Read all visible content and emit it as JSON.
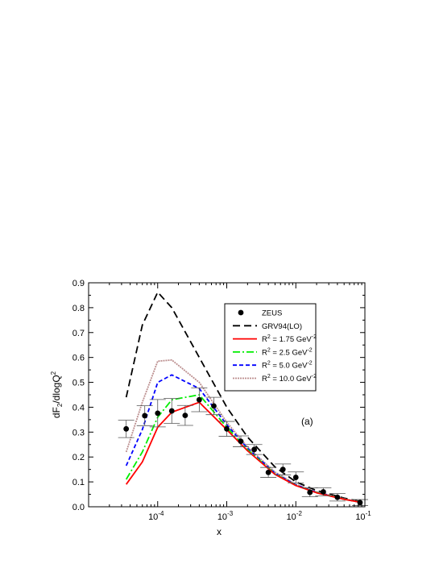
{
  "chart_data": {
    "type": "line",
    "xlabel": "x",
    "ylabel_main": "dF",
    "ylabel_sub": "2",
    "ylabel_mid": "/dlogQ",
    "ylabel_sup": "2",
    "x_scale": "log",
    "xlim": [
      1e-05,
      0.1
    ],
    "ylim": [
      0,
      0.9
    ],
    "x_ticks": [
      {
        "base": "10",
        "exp": "-4",
        "value": 0.0001
      },
      {
        "base": "10",
        "exp": "-3",
        "value": 0.001
      },
      {
        "base": "10",
        "exp": "-2",
        "value": 0.01
      },
      {
        "base": "10",
        "exp": "-1",
        "value": 0.1
      }
    ],
    "y_ticks": [
      "0.0",
      "0.1",
      "0.2",
      "0.3",
      "0.4",
      "0.5",
      "0.6",
      "0.7",
      "0.8",
      "0.9"
    ],
    "annotation": "(a)",
    "legend_placement": "top-right",
    "data_points": {
      "name": "ZEUS",
      "points": [
        {
          "x": 3.5e-05,
          "y": 0.313,
          "err": 0.035
        },
        {
          "x": 6.5e-05,
          "y": 0.366,
          "err": 0.04
        },
        {
          "x": 0.0001,
          "y": 0.376,
          "err": 0.055
        },
        {
          "x": 0.00016,
          "y": 0.385,
          "err": 0.05
        },
        {
          "x": 0.00025,
          "y": 0.367,
          "err": 0.04
        },
        {
          "x": 0.0004,
          "y": 0.43,
          "err": 0.048
        },
        {
          "x": 0.00065,
          "y": 0.405,
          "err": 0.035
        },
        {
          "x": 0.001,
          "y": 0.313,
          "err": 0.03
        },
        {
          "x": 0.0016,
          "y": 0.263,
          "err": 0.022
        },
        {
          "x": 0.0025,
          "y": 0.23,
          "err": 0.02
        },
        {
          "x": 0.004,
          "y": 0.138,
          "err": 0.02
        },
        {
          "x": 0.0065,
          "y": 0.15,
          "err": 0.022
        },
        {
          "x": 0.01,
          "y": 0.118,
          "err": 0.022
        },
        {
          "x": 0.016,
          "y": 0.058,
          "err": 0.018
        },
        {
          "x": 0.025,
          "y": 0.06,
          "err": 0.016
        },
        {
          "x": 0.04,
          "y": 0.038,
          "err": 0.015
        },
        {
          "x": 0.085,
          "y": 0.017,
          "err": 0.012
        }
      ]
    },
    "series": [
      {
        "name": "GRV94(LO)",
        "color": "#000000",
        "dash": "9,5",
        "width": 1.8,
        "x": [
          3.5e-05,
          6e-05,
          0.0001,
          0.00016,
          0.0004,
          0.001,
          0.002,
          0.005,
          0.01,
          0.02,
          0.05,
          0.09
        ],
        "y": [
          0.44,
          0.73,
          0.862,
          0.8,
          0.6,
          0.4,
          0.28,
          0.16,
          0.1,
          0.065,
          0.035,
          0.02
        ]
      },
      {
        "name": "10.0",
        "color": "#bc8f8f",
        "dash": "2,1",
        "width": 1.8,
        "x": [
          3.5e-05,
          6e-05,
          0.0001,
          0.00016,
          0.0004,
          0.001,
          0.002,
          0.005,
          0.01,
          0.02,
          0.05,
          0.09
        ],
        "y": [
          0.22,
          0.42,
          0.585,
          0.59,
          0.5,
          0.34,
          0.24,
          0.14,
          0.09,
          0.06,
          0.032,
          0.018
        ]
      },
      {
        "name": "5.0",
        "color": "#0000ff",
        "dash": "5,3",
        "width": 1.8,
        "x": [
          3.5e-05,
          6e-05,
          0.0001,
          0.00016,
          0.0004,
          0.001,
          0.002,
          0.005,
          0.01,
          0.02,
          0.05,
          0.09
        ],
        "y": [
          0.165,
          0.31,
          0.5,
          0.53,
          0.475,
          0.33,
          0.235,
          0.135,
          0.088,
          0.058,
          0.03,
          0.017
        ]
      },
      {
        "name": "2.5",
        "color": "#00ee00",
        "dash": "9,3,2,3",
        "width": 1.8,
        "x": [
          3.5e-05,
          6e-05,
          0.0001,
          0.00016,
          0.0004,
          0.001,
          0.002,
          0.005,
          0.01,
          0.02,
          0.05,
          0.09
        ],
        "y": [
          0.11,
          0.22,
          0.36,
          0.43,
          0.45,
          0.32,
          0.23,
          0.132,
          0.086,
          0.057,
          0.03,
          0.017
        ]
      },
      {
        "name": "1.75",
        "color": "#ff0000",
        "dash": "",
        "width": 1.8,
        "x": [
          3.5e-05,
          6e-05,
          0.0001,
          0.00016,
          0.0004,
          0.001,
          0.002,
          0.005,
          0.01,
          0.02,
          0.05,
          0.09
        ],
        "y": [
          0.09,
          0.18,
          0.32,
          0.38,
          0.42,
          0.31,
          0.225,
          0.13,
          0.085,
          0.056,
          0.03,
          0.017
        ]
      }
    ],
    "legend": [
      {
        "kind": "marker",
        "label": "ZEUS"
      },
      {
        "kind": "line",
        "series": 0,
        "label": "GRV94(LO)"
      },
      {
        "kind": "line",
        "series": 4,
        "label_parts": [
          "R",
          "2",
          " = 1.75  GeV",
          "-2"
        ]
      },
      {
        "kind": "line",
        "series": 3,
        "label_parts": [
          "R",
          "2",
          " = 2.5  GeV",
          "-2"
        ]
      },
      {
        "kind": "line",
        "series": 2,
        "label_parts": [
          "R",
          "2",
          " = 5.0  GeV",
          "-2"
        ]
      },
      {
        "kind": "line",
        "series": 1,
        "label_parts": [
          "R",
          "2",
          " = 10.0  GeV",
          "-2"
        ]
      }
    ]
  }
}
